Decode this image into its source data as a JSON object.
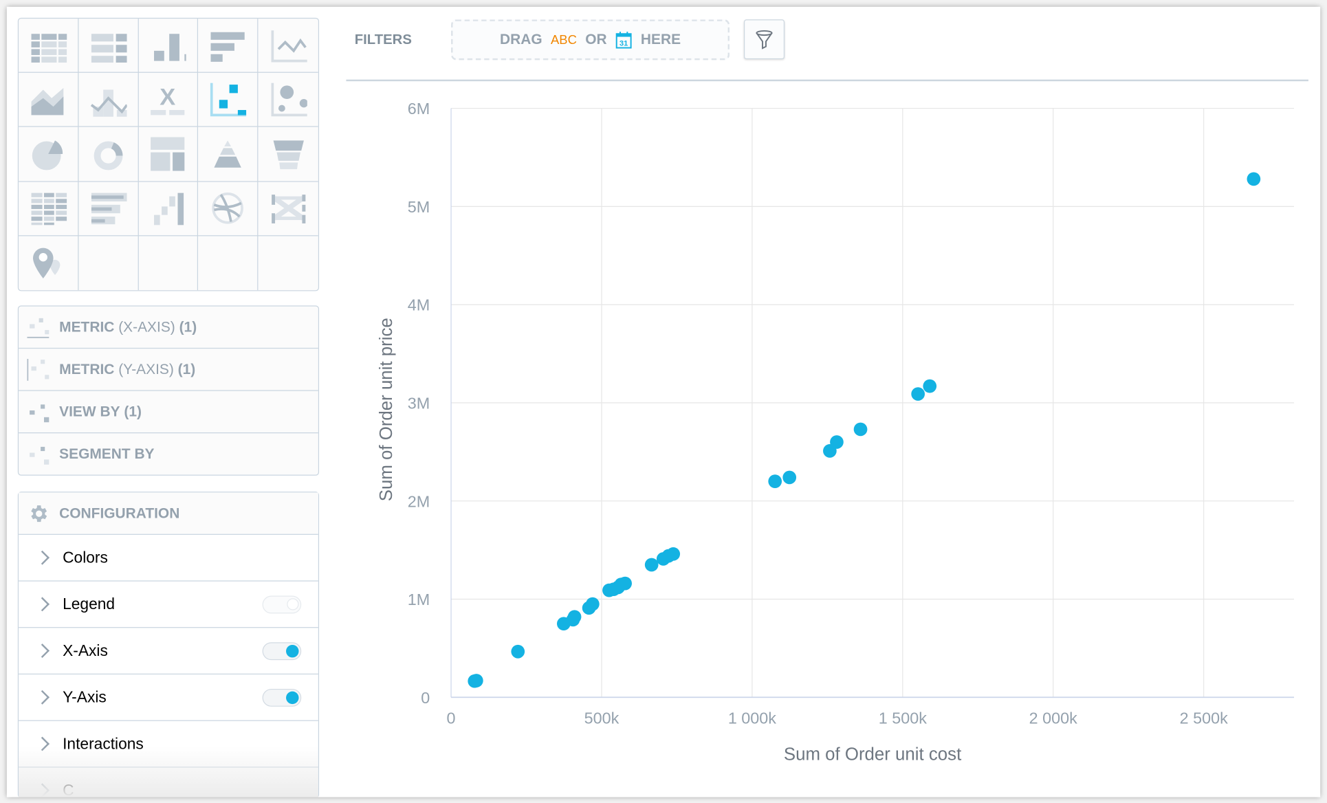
{
  "chart_types": [
    {
      "name": "table"
    },
    {
      "name": "headline-table"
    },
    {
      "name": "column"
    },
    {
      "name": "bar"
    },
    {
      "name": "line"
    },
    {
      "name": "area"
    },
    {
      "name": "combo"
    },
    {
      "name": "headline"
    },
    {
      "name": "scatter",
      "selected": true
    },
    {
      "name": "bubble"
    },
    {
      "name": "pie"
    },
    {
      "name": "donut"
    },
    {
      "name": "treemap"
    },
    {
      "name": "pyramid"
    },
    {
      "name": "funnel"
    },
    {
      "name": "heatmap"
    },
    {
      "name": "bullet"
    },
    {
      "name": "waterfall"
    },
    {
      "name": "dependency-wheel"
    },
    {
      "name": "sankey"
    },
    {
      "name": "geo-pushpin"
    }
  ],
  "buckets": [
    {
      "title": "METRIC",
      "qualifier": "(X-AXIS)",
      "count": "(1)"
    },
    {
      "title": "METRIC",
      "qualifier": "(Y-AXIS)",
      "count": "(1)"
    },
    {
      "title": "VIEW BY",
      "qualifier": "",
      "count": "(1)"
    },
    {
      "title": "SEGMENT BY",
      "qualifier": "",
      "count": ""
    }
  ],
  "configuration": {
    "title": "CONFIGURATION",
    "sections": [
      {
        "label": "Colors"
      },
      {
        "label": "Legend",
        "toggle": false
      },
      {
        "label": "X-Axis",
        "toggle": true
      },
      {
        "label": "Y-Axis",
        "toggle": true
      },
      {
        "label": "Interactions"
      },
      {
        "label": "C"
      }
    ]
  },
  "filters": {
    "label": "FILTERS",
    "drag": "DRAG",
    "abc": "ABC",
    "or": "OR",
    "calendar_day": "31",
    "here": "HERE"
  },
  "colors": {
    "accent": "#14b2e2",
    "muted": "#94a1ad",
    "border": "#c9d5e0",
    "abc": "#f18600"
  },
  "chart_data": {
    "type": "scatter",
    "xlabel": "Sum of Order unit cost",
    "ylabel": "Sum of Order unit price",
    "xlim": [
      0,
      2800000
    ],
    "ylim": [
      0,
      6000000
    ],
    "grid": true,
    "legend": "none",
    "x_ticks": [
      0,
      500000,
      1000000,
      1500000,
      2000000,
      2500000
    ],
    "x_tick_labels": [
      "0",
      "500k",
      "1 000k",
      "1 500k",
      "2 000k",
      "2 500k"
    ],
    "y_ticks": [
      0,
      1000000,
      2000000,
      3000000,
      4000000,
      5000000,
      6000000
    ],
    "y_tick_labels": [
      "0",
      "1M",
      "2M",
      "3M",
      "4M",
      "5M",
      "6M"
    ],
    "color": "#14b2e2",
    "points": [
      [
        78000,
        165000
      ],
      [
        84000,
        170000
      ],
      [
        222000,
        466000
      ],
      [
        374000,
        750000
      ],
      [
        405000,
        790000
      ],
      [
        410000,
        820000
      ],
      [
        458000,
        910000
      ],
      [
        470000,
        950000
      ],
      [
        525000,
        1090000
      ],
      [
        540000,
        1100000
      ],
      [
        555000,
        1120000
      ],
      [
        565000,
        1150000
      ],
      [
        578000,
        1160000
      ],
      [
        666000,
        1350000
      ],
      [
        705000,
        1410000
      ],
      [
        722000,
        1440000
      ],
      [
        738000,
        1460000
      ],
      [
        1076000,
        2200000
      ],
      [
        1124000,
        2240000
      ],
      [
        1258000,
        2510000
      ],
      [
        1281000,
        2600000
      ],
      [
        1360000,
        2730000
      ],
      [
        1551000,
        3090000
      ],
      [
        1590000,
        3170000
      ],
      [
        2666000,
        5280000
      ]
    ]
  }
}
